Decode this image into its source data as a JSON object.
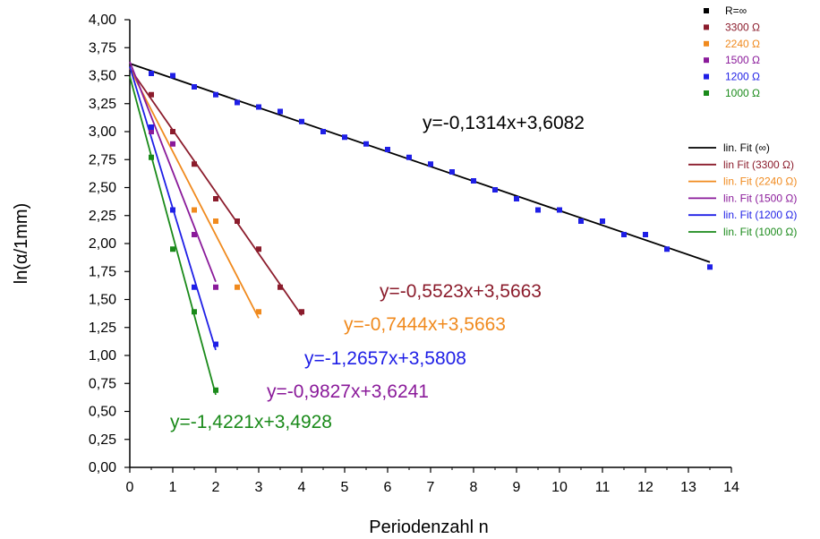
{
  "chart_data": {
    "type": "scatter",
    "xlabel": "Periodenzahl n",
    "ylabel": "ln(α/1mm)",
    "xlim": [
      0,
      14
    ],
    "ylim": [
      0,
      4
    ],
    "x_ticks": [
      "0",
      "1",
      "2",
      "3",
      "4",
      "5",
      "6",
      "7",
      "8",
      "9",
      "10",
      "11",
      "12",
      "13",
      "14"
    ],
    "y_ticks": [
      "0,00",
      "0,25",
      "0,50",
      "0,75",
      "1,00",
      "1,25",
      "1,50",
      "1,75",
      "2,00",
      "2,25",
      "2,50",
      "2,75",
      "3,00",
      "3,25",
      "3,50",
      "3,75",
      "4,00"
    ],
    "series": [
      {
        "name": "R=∞",
        "color": "#1f1fe6",
        "x": [
          0.5,
          1,
          1.5,
          2,
          2.5,
          3,
          3.5,
          4,
          4.5,
          5,
          5.5,
          6,
          6.5,
          7,
          7.5,
          8,
          8.5,
          9,
          9.5,
          10,
          10.5,
          11,
          11.5,
          12,
          12.5,
          13.5
        ],
        "y": [
          3.52,
          3.5,
          3.4,
          3.33,
          3.26,
          3.22,
          3.18,
          3.09,
          3.0,
          2.95,
          2.89,
          2.84,
          2.77,
          2.71,
          2.64,
          2.56,
          2.48,
          2.4,
          2.3,
          2.3,
          2.2,
          2.2,
          2.08,
          2.08,
          1.95,
          1.79
        ]
      },
      {
        "name": "3300 Ω",
        "color": "#8b1c2c",
        "x": [
          0.5,
          1,
          1.5,
          2,
          2.5,
          3,
          3.5,
          4
        ],
        "y": [
          3.33,
          3.0,
          2.71,
          2.4,
          2.2,
          1.95,
          1.61,
          1.39
        ]
      },
      {
        "name": "2240 Ω",
        "color": "#f08a1e",
        "x": [
          1.5,
          2,
          2.5,
          3
        ],
        "y": [
          2.3,
          2.2,
          1.61,
          1.39
        ]
      },
      {
        "name": "1500 Ω",
        "color": "#8a1a9a",
        "x": [
          0.5,
          1,
          1.5,
          2
        ],
        "y": [
          3.0,
          2.89,
          2.08,
          1.61
        ]
      },
      {
        "name": "1200 Ω",
        "color": "#1f1fe6",
        "x": [
          0.5,
          1,
          1.5,
          2
        ],
        "y": [
          3.04,
          2.3,
          1.61,
          1.1
        ]
      },
      {
        "name": "1000 Ω",
        "color": "#1a8a1a",
        "x": [
          0.5,
          1,
          1.5,
          2
        ],
        "y": [
          2.77,
          1.95,
          1.39,
          0.69
        ]
      }
    ],
    "fits": [
      {
        "name": "lin. Fit (∞)",
        "color": "#000000",
        "slope": -0.1314,
        "intercept": 3.6082,
        "x_range": [
          0,
          13.5
        ],
        "equation": "y=-0,1314x+3,6082"
      },
      {
        "name": "lin Fit (3300 Ω)",
        "color": "#8b1c2c",
        "slope": -0.5523,
        "intercept": 3.5663,
        "x_range": [
          0,
          4
        ],
        "equation": "y=-0,5523x+3,5663"
      },
      {
        "name": "lin. Fit (2240 Ω)",
        "color": "#f08a1e",
        "slope": -0.7444,
        "intercept": 3.5663,
        "x_range": [
          0,
          3
        ],
        "equation": "y=-0,7444x+3,5663"
      },
      {
        "name": "lin. Fit (1500 Ω)",
        "color": "#8a1a9a",
        "slope": -0.9827,
        "intercept": 3.6241,
        "x_range": [
          0,
          2
        ],
        "equation": "y=-0,9827x+3,6241"
      },
      {
        "name": "lin. Fit (1200 Ω)",
        "color": "#1f1fe6",
        "slope": -1.2657,
        "intercept": 3.5808,
        "x_range": [
          0,
          2
        ],
        "equation": "y=-1,2657x+3,5808"
      },
      {
        "name": "lin. Fit (1000 Ω)",
        "color": "#1a8a1a",
        "slope": -1.4221,
        "intercept": 3.4928,
        "x_range": [
          0,
          2
        ],
        "equation": "y=-1,4221x+3,4928"
      }
    ],
    "point_legend": [
      {
        "label": "R=∞",
        "color": "#000000"
      },
      {
        "label": "3300 Ω",
        "color": "#8b1c2c"
      },
      {
        "label": "2240 Ω",
        "color": "#f08a1e"
      },
      {
        "label": "1500 Ω",
        "color": "#8a1a9a"
      },
      {
        "label": "1200 Ω",
        "color": "#1f1fe6"
      },
      {
        "label": "1000 Ω",
        "color": "#1a8a1a"
      }
    ]
  }
}
